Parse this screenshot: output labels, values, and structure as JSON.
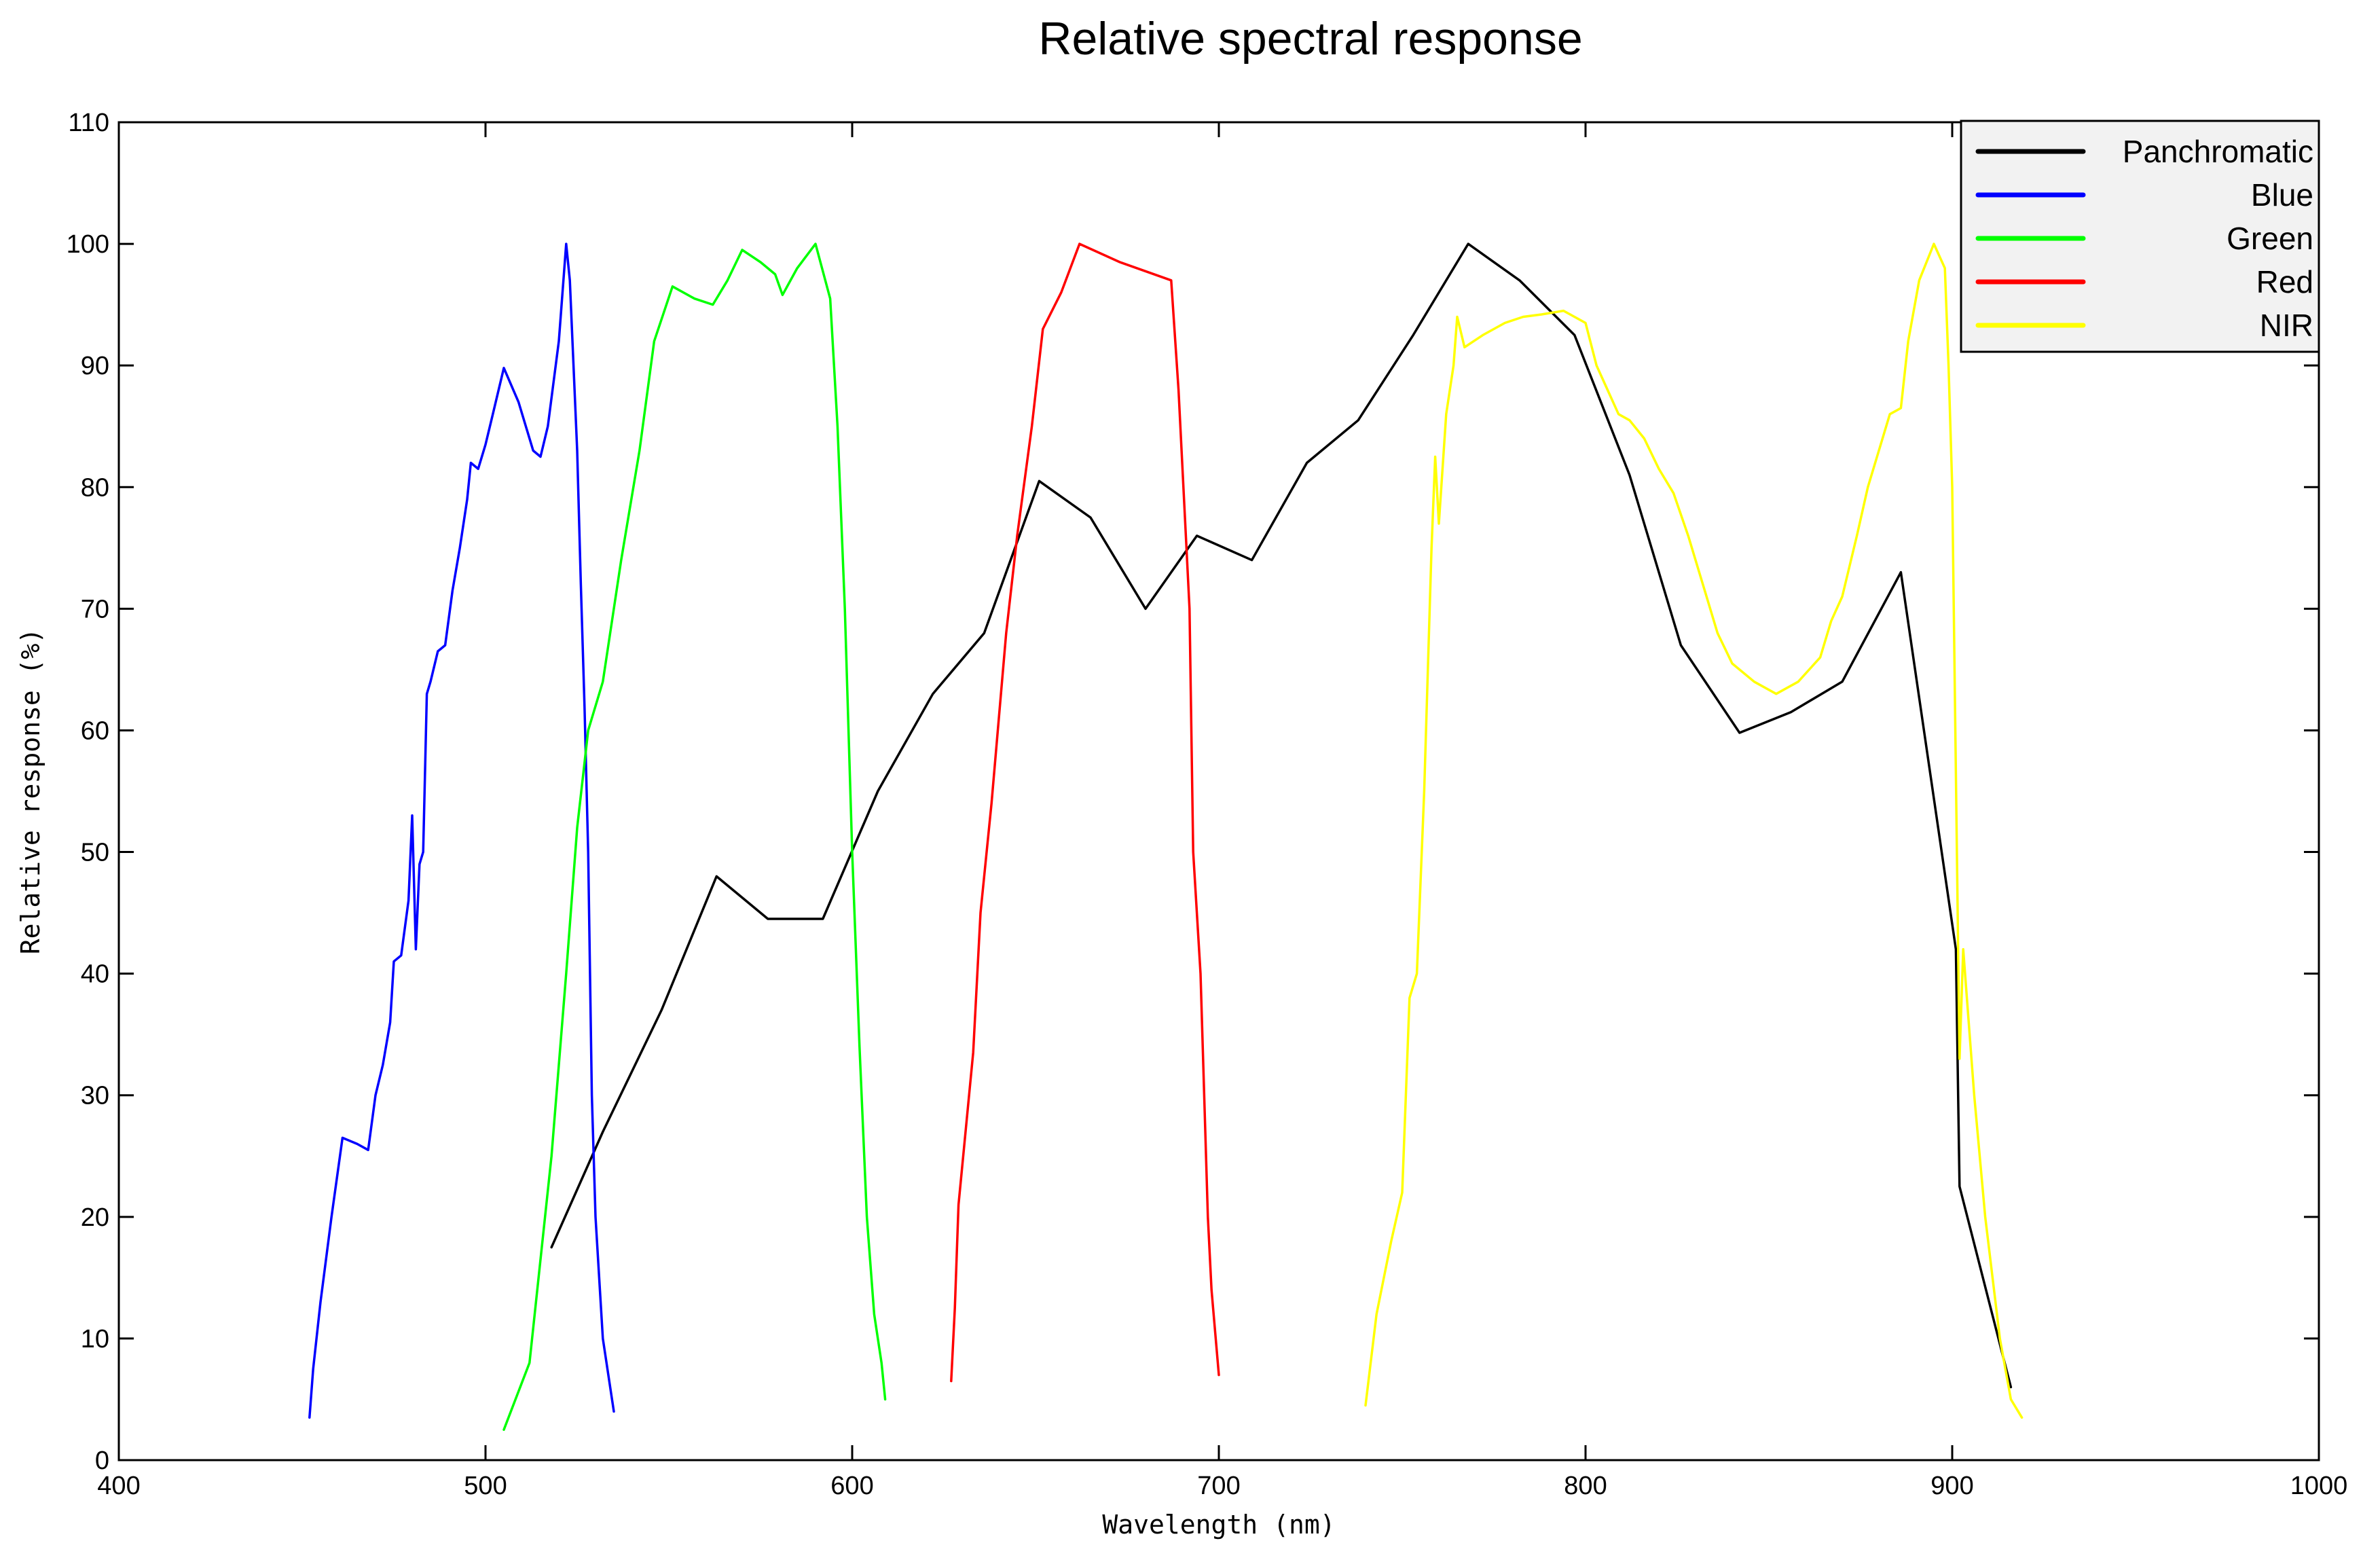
{
  "chart_data": {
    "type": "line",
    "title": "Relative spectral response",
    "xlabel": "Wavelength (nm)",
    "ylabel": "Relative response (%)",
    "xlim": [
      400,
      1000
    ],
    "ylim": [
      0,
      110
    ],
    "xticks": [
      400,
      500,
      600,
      700,
      800,
      900,
      1000
    ],
    "yticks": [
      0,
      10,
      20,
      30,
      40,
      50,
      60,
      70,
      80,
      90,
      100,
      110
    ],
    "grid": false,
    "legend_position": "top-right",
    "series": [
      {
        "name": "Panchromatic",
        "color": "#000000",
        "points": [
          [
            518,
            17.5
          ],
          [
            532,
            27
          ],
          [
            548,
            37
          ],
          [
            563,
            48
          ],
          [
            577,
            44.5
          ],
          [
            592,
            44.5
          ],
          [
            607,
            55
          ],
          [
            622,
            63
          ],
          [
            636,
            68
          ],
          [
            651,
            80.5
          ],
          [
            665,
            77.5
          ],
          [
            680,
            70
          ],
          [
            694,
            76
          ],
          [
            709,
            74
          ],
          [
            724,
            82
          ],
          [
            738,
            85.5
          ],
          [
            753,
            92.5
          ],
          [
            768,
            100
          ],
          [
            782,
            97
          ],
          [
            797,
            92.5
          ],
          [
            812,
            81
          ],
          [
            826,
            67
          ],
          [
            842,
            59.8
          ],
          [
            856,
            61.5
          ],
          [
            870,
            64
          ],
          [
            886,
            73
          ],
          [
            901,
            42
          ],
          [
            902,
            22.5
          ],
          [
            916,
            6
          ]
        ]
      },
      {
        "name": "Blue",
        "color": "#0000ff",
        "points": [
          [
            452,
            3.5
          ],
          [
            453,
            7.5
          ],
          [
            455,
            13
          ],
          [
            458,
            20
          ],
          [
            461,
            26.5
          ],
          [
            465,
            26
          ],
          [
            468,
            25.5
          ],
          [
            470,
            30
          ],
          [
            472,
            32.5
          ],
          [
            474,
            36
          ],
          [
            475,
            41
          ],
          [
            477,
            41.5
          ],
          [
            479,
            46
          ],
          [
            480,
            53
          ],
          [
            481,
            42
          ],
          [
            482,
            49
          ],
          [
            483,
            50
          ],
          [
            484,
            63
          ],
          [
            485,
            64
          ],
          [
            487,
            66.5
          ],
          [
            489,
            67
          ],
          [
            491,
            71.5
          ],
          [
            493,
            75
          ],
          [
            495,
            79
          ],
          [
            496,
            82
          ],
          [
            498,
            81.5
          ],
          [
            500,
            83.5
          ],
          [
            502,
            86
          ],
          [
            505,
            89.8
          ],
          [
            509,
            87
          ],
          [
            511,
            85
          ],
          [
            513,
            83
          ],
          [
            515,
            82.5
          ],
          [
            517,
            85
          ],
          [
            520,
            92
          ],
          [
            522,
            100
          ],
          [
            523,
            97
          ],
          [
            524,
            90
          ],
          [
            525,
            83
          ],
          [
            526,
            72
          ],
          [
            527,
            62
          ],
          [
            528,
            50
          ],
          [
            529,
            30
          ],
          [
            530,
            20
          ],
          [
            532,
            10
          ],
          [
            535,
            4
          ]
        ]
      },
      {
        "name": "Green",
        "color": "#00ff00",
        "points": [
          [
            505,
            2.5
          ],
          [
            512,
            8
          ],
          [
            518,
            25
          ],
          [
            522,
            40
          ],
          [
            525,
            52
          ],
          [
            528,
            60
          ],
          [
            532,
            64
          ],
          [
            537,
            74
          ],
          [
            542,
            83
          ],
          [
            546,
            92
          ],
          [
            551,
            96.5
          ],
          [
            557,
            95.5
          ],
          [
            562,
            95
          ],
          [
            566,
            97
          ],
          [
            570,
            99.5
          ],
          [
            575,
            98.5
          ],
          [
            579,
            97.5
          ],
          [
            581,
            95.8
          ],
          [
            585,
            98
          ],
          [
            590,
            100
          ],
          [
            594,
            95.5
          ],
          [
            596,
            85
          ],
          [
            598,
            70
          ],
          [
            600,
            50
          ],
          [
            602,
            34
          ],
          [
            604,
            20
          ],
          [
            606,
            12
          ],
          [
            608,
            8
          ],
          [
            609,
            5
          ]
        ]
      },
      {
        "name": "Red",
        "color": "#ff0000",
        "points": [
          [
            627,
            6.5
          ],
          [
            628,
            12.5
          ],
          [
            629,
            21
          ],
          [
            633,
            33.5
          ],
          [
            635,
            45
          ],
          [
            638,
            54
          ],
          [
            642,
            68
          ],
          [
            645,
            76
          ],
          [
            649,
            85
          ],
          [
            652,
            93
          ],
          [
            657,
            96
          ],
          [
            662,
            100
          ],
          [
            673,
            98.5
          ],
          [
            687,
            97
          ],
          [
            689,
            88
          ],
          [
            692,
            70
          ],
          [
            693,
            50
          ],
          [
            695,
            40
          ],
          [
            697,
            20
          ],
          [
            698,
            14
          ],
          [
            700,
            7
          ]
        ]
      },
      {
        "name": "NIR",
        "color": "#ffff00",
        "points": [
          [
            740,
            4.5
          ],
          [
            743,
            12
          ],
          [
            747,
            18
          ],
          [
            750,
            22
          ],
          [
            752,
            38
          ],
          [
            754,
            40
          ],
          [
            756,
            55
          ],
          [
            757,
            65
          ],
          [
            758,
            75
          ],
          [
            759,
            82.5
          ],
          [
            760,
            77
          ],
          [
            762,
            86
          ],
          [
            764,
            90
          ],
          [
            765,
            94
          ],
          [
            767,
            91.5
          ],
          [
            772,
            92.5
          ],
          [
            778,
            93.5
          ],
          [
            783,
            94
          ],
          [
            788,
            94.2
          ],
          [
            794,
            94.5
          ],
          [
            800,
            93.5
          ],
          [
            803,
            90
          ],
          [
            806,
            88
          ],
          [
            809,
            86
          ],
          [
            812,
            85.5
          ],
          [
            816,
            84
          ],
          [
            820,
            81.5
          ],
          [
            824,
            79.5
          ],
          [
            828,
            76
          ],
          [
            832,
            72
          ],
          [
            836,
            68
          ],
          [
            840,
            65.5
          ],
          [
            846,
            64
          ],
          [
            852,
            63
          ],
          [
            858,
            64
          ],
          [
            864,
            66
          ],
          [
            867,
            69
          ],
          [
            870,
            71
          ],
          [
            874,
            76
          ],
          [
            877,
            80
          ],
          [
            880,
            83
          ],
          [
            883,
            86
          ],
          [
            886,
            86.5
          ],
          [
            888,
            92
          ],
          [
            891,
            97
          ],
          [
            895,
            100
          ],
          [
            898,
            98
          ],
          [
            899,
            90
          ],
          [
            900,
            80
          ],
          [
            902,
            33
          ],
          [
            903,
            42
          ],
          [
            906,
            30
          ],
          [
            909,
            20
          ],
          [
            913,
            10
          ],
          [
            916,
            5
          ],
          [
            919,
            3.5
          ]
        ]
      }
    ]
  }
}
